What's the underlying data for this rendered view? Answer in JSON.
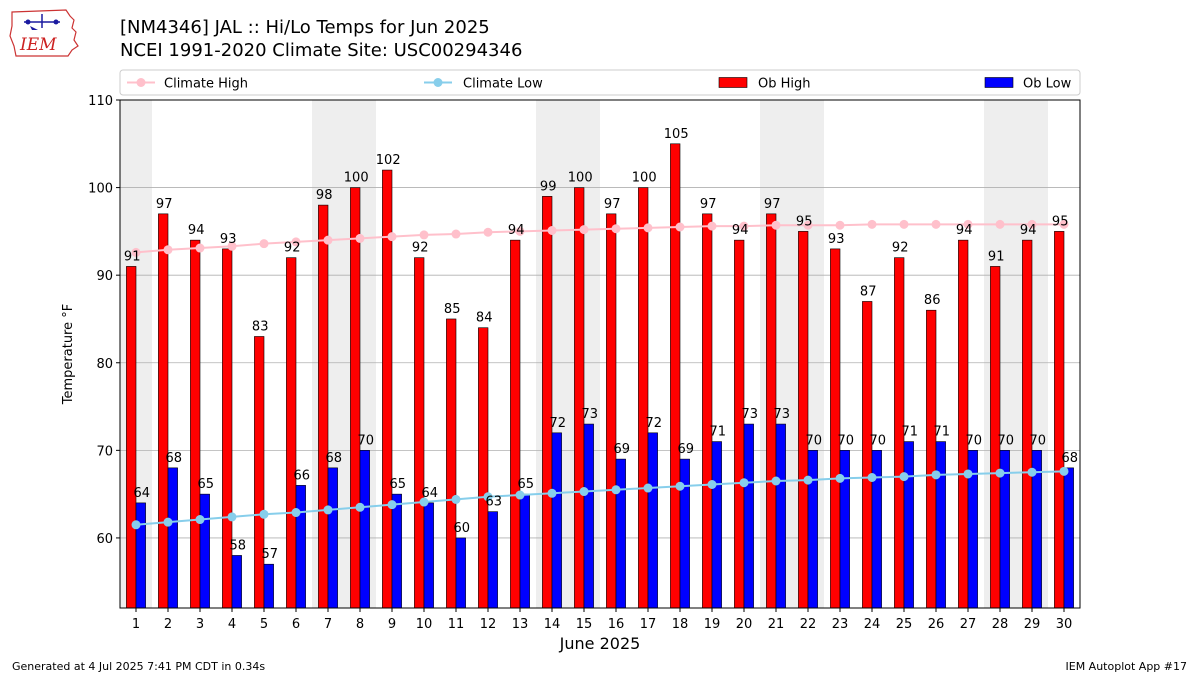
{
  "header": {
    "logo_text": "IEM",
    "title_line1": "[NM4346] JAL :: Hi/Lo Temps for Jun 2025",
    "title_line2": "NCEI 1991-2020 Climate Site: USC00294346"
  },
  "footer": {
    "left": "Generated at 4 Jul 2025 7:41 PM CDT in 0.34s",
    "right": "IEM Autoplot App #17"
  },
  "colors": {
    "ob_high": "#ff0000",
    "ob_low": "#0000ff",
    "climate_high": "#ffc0cb",
    "climate_low": "#87ceeb",
    "weekend_shade": "#eeeeee",
    "grid": "#b0b0b0"
  },
  "chart_data": {
    "type": "bar",
    "title": "[NM4346] JAL :: Hi/Lo Temps for Jun 2025",
    "subtitle": "NCEI 1991-2020 Climate Site: USC00294346",
    "xlabel": "June 2025",
    "ylabel": "Temperature °F",
    "ylim": [
      52,
      110
    ],
    "yticks": [
      60,
      70,
      80,
      90,
      100,
      110
    ],
    "grid": "horizontal",
    "legend_position": "top",
    "categories": [
      "1",
      "2",
      "3",
      "4",
      "5",
      "6",
      "7",
      "8",
      "9",
      "10",
      "11",
      "12",
      "13",
      "14",
      "15",
      "16",
      "17",
      "18",
      "19",
      "20",
      "21",
      "22",
      "23",
      "24",
      "25",
      "26",
      "27",
      "28",
      "29",
      "30"
    ],
    "shaded_days": [
      1,
      7,
      8,
      14,
      15,
      21,
      22,
      28,
      29
    ],
    "series": [
      {
        "name": "Ob High",
        "kind": "bar",
        "values": [
          91,
          97,
          94,
          93,
          83,
          92,
          98,
          100,
          102,
          92,
          85,
          84,
          94,
          99,
          100,
          97,
          100,
          105,
          97,
          94,
          97,
          95,
          93,
          87,
          92,
          86,
          94,
          91,
          94,
          95
        ]
      },
      {
        "name": "Ob Low",
        "kind": "bar",
        "values": [
          64,
          68,
          65,
          58,
          57,
          66,
          68,
          70,
          65,
          64,
          60,
          63,
          65,
          72,
          73,
          69,
          72,
          69,
          71,
          73,
          73,
          70,
          70,
          70,
          71,
          71,
          70,
          70,
          70,
          68
        ]
      },
      {
        "name": "Climate High",
        "kind": "line",
        "values": [
          92.6,
          92.9,
          93.1,
          93.3,
          93.6,
          93.8,
          94.0,
          94.2,
          94.4,
          94.6,
          94.7,
          94.9,
          95.0,
          95.1,
          95.2,
          95.3,
          95.4,
          95.5,
          95.6,
          95.6,
          95.7,
          95.7,
          95.7,
          95.8,
          95.8,
          95.8,
          95.8,
          95.8,
          95.8,
          95.8
        ]
      },
      {
        "name": "Climate Low",
        "kind": "line",
        "values": [
          61.5,
          61.8,
          62.1,
          62.4,
          62.7,
          62.9,
          63.2,
          63.5,
          63.8,
          64.1,
          64.4,
          64.7,
          64.9,
          65.1,
          65.3,
          65.5,
          65.7,
          65.9,
          66.1,
          66.3,
          66.5,
          66.6,
          66.8,
          66.9,
          67.0,
          67.2,
          67.3,
          67.4,
          67.5,
          67.6
        ]
      }
    ]
  }
}
